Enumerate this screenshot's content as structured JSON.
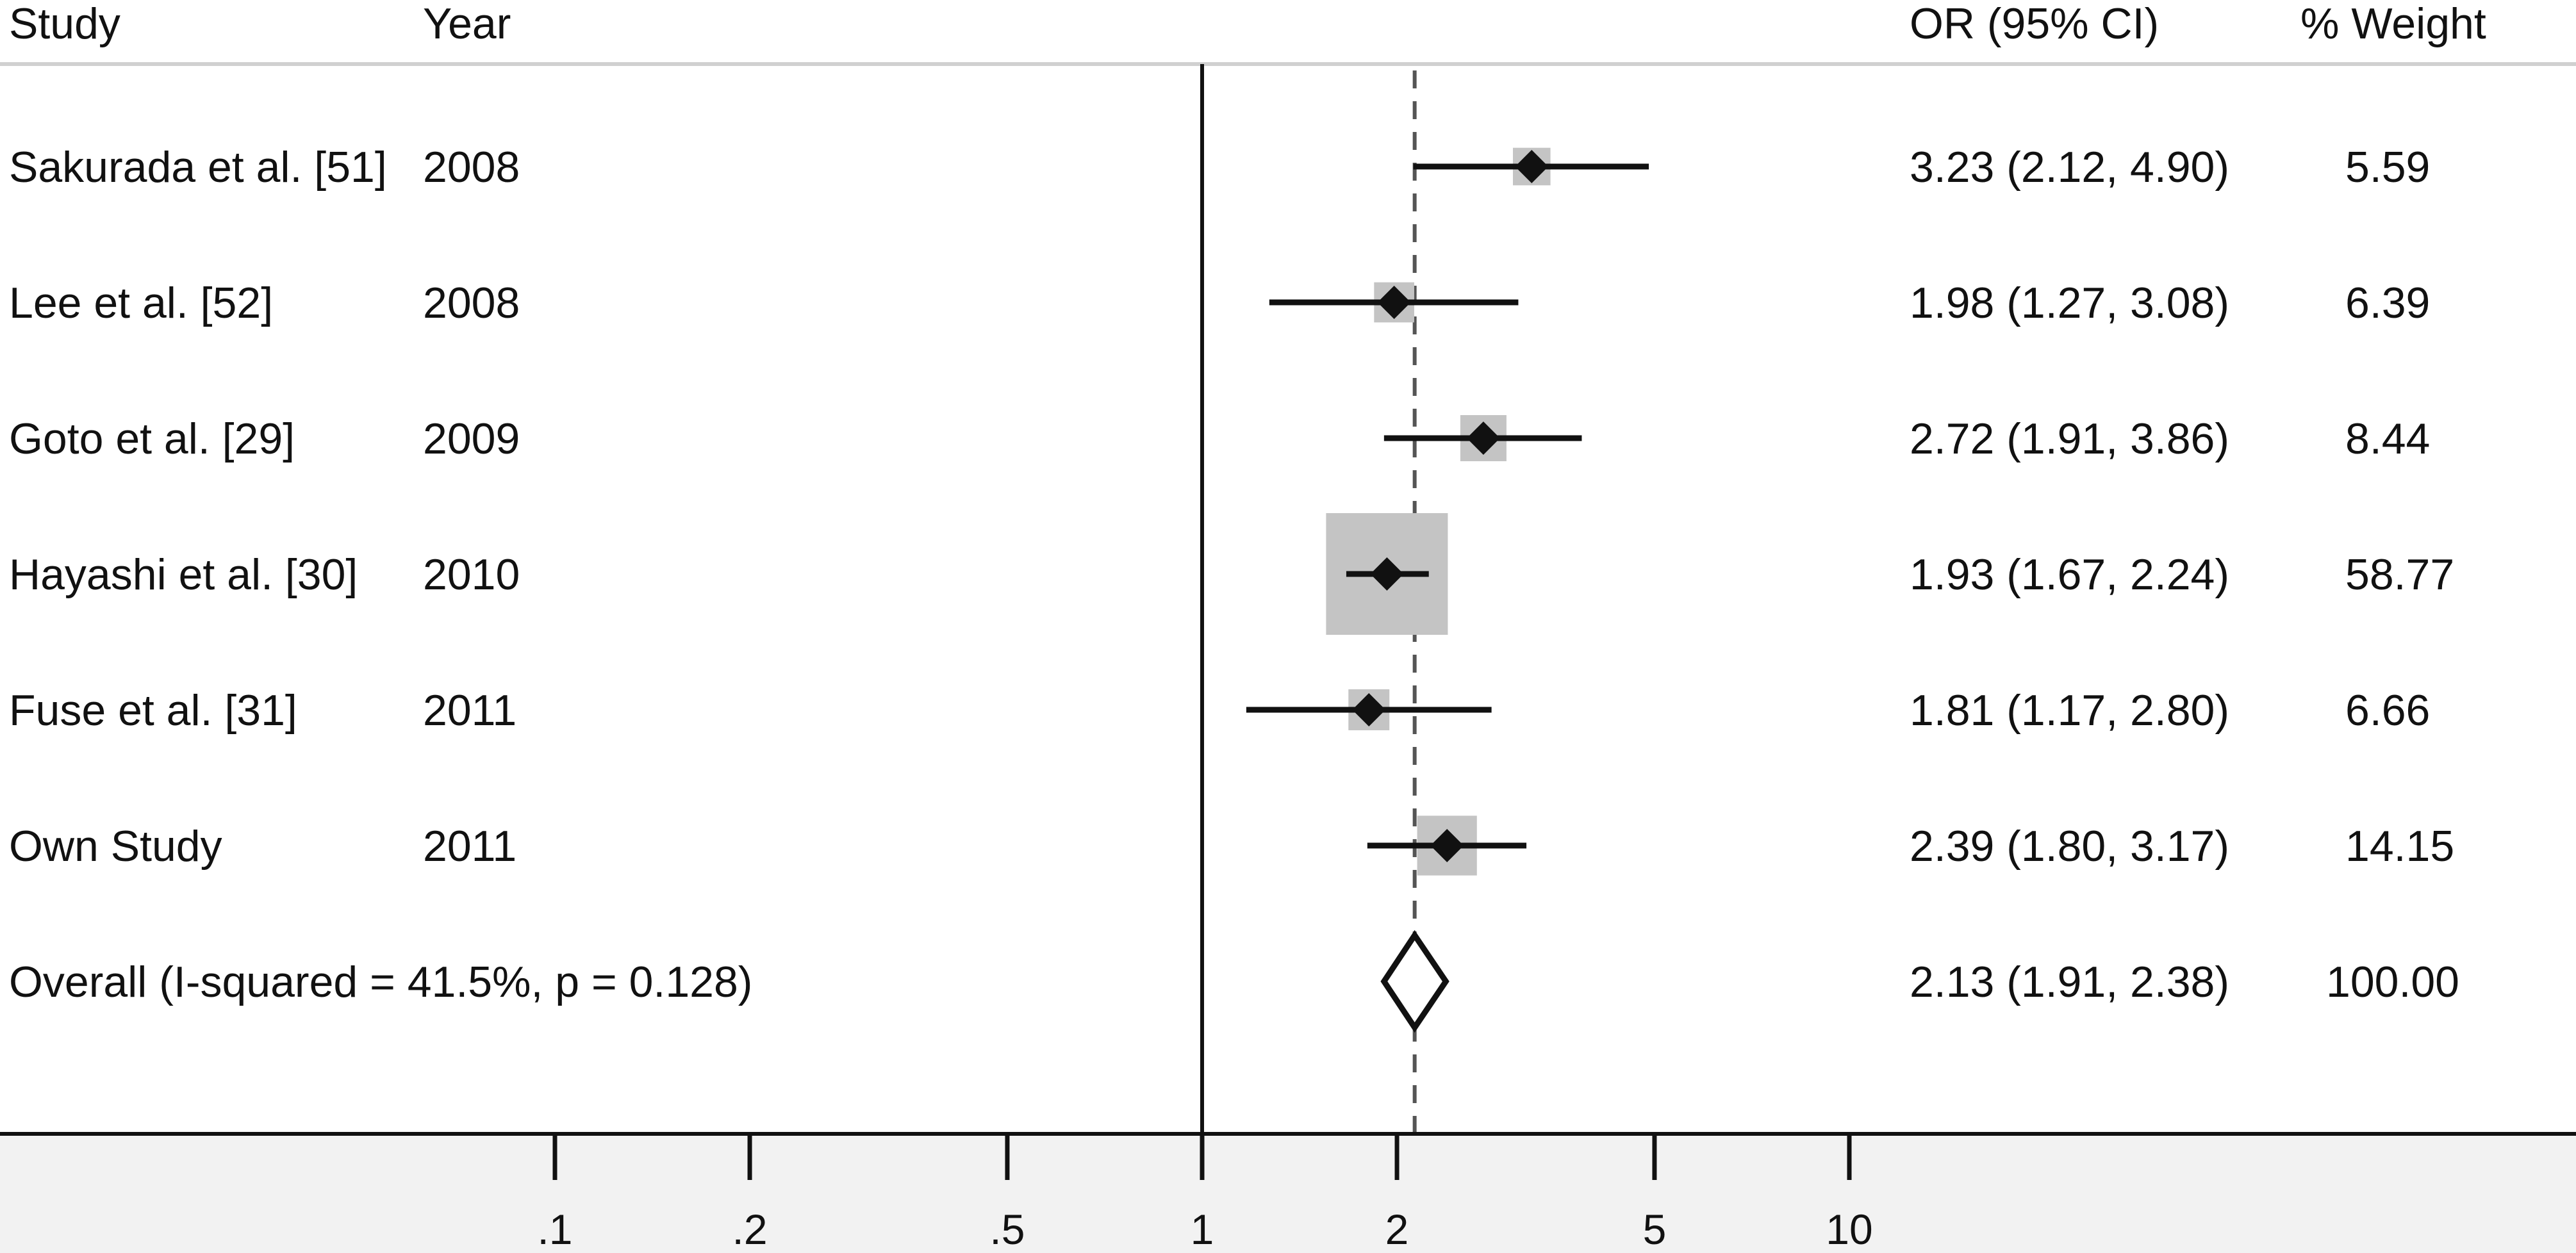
{
  "chart_data": {
    "type": "forest",
    "headers": {
      "study": "Study",
      "year": "Year",
      "or": "OR (95% CI)",
      "weight": "% Weight"
    },
    "studies": [
      {
        "name": "Sakurada et al. [51]",
        "year": "2008",
        "or": 3.23,
        "lo": 2.12,
        "hi": 4.9,
        "or_text": "3.23 (2.12, 4.90)",
        "weight": 5.59,
        "weight_text": "5.59"
      },
      {
        "name": "Lee et al. [52]",
        "year": "2008",
        "or": 1.98,
        "lo": 1.27,
        "hi": 3.08,
        "or_text": "1.98 (1.27, 3.08)",
        "weight": 6.39,
        "weight_text": "6.39"
      },
      {
        "name": "Goto et al. [29]",
        "year": "2009",
        "or": 2.72,
        "lo": 1.91,
        "hi": 3.86,
        "or_text": "2.72 (1.91, 3.86)",
        "weight": 8.44,
        "weight_text": "8.44"
      },
      {
        "name": "Hayashi et al. [30]",
        "year": "2010",
        "or": 1.93,
        "lo": 1.67,
        "hi": 2.24,
        "or_text": "1.93 (1.67, 2.24)",
        "weight": 58.77,
        "weight_text": "58.77"
      },
      {
        "name": "Fuse et al. [31]",
        "year": "2011",
        "or": 1.81,
        "lo": 1.17,
        "hi": 2.8,
        "or_text": "1.81 (1.17, 2.80)",
        "weight": 6.66,
        "weight_text": "6.66"
      },
      {
        "name": "Own Study",
        "year": "2011",
        "or": 2.39,
        "lo": 1.8,
        "hi": 3.17,
        "or_text": "2.39 (1.80, 3.17)",
        "weight": 14.15,
        "weight_text": "14.15"
      }
    ],
    "overall": {
      "label": "Overall  (I-squared = 41.5%, p = 0.128)",
      "or": 2.13,
      "lo": 1.91,
      "hi": 2.38,
      "or_text": "2.13 (1.91, 2.38)",
      "weight_text": "100.00"
    },
    "x_axis": {
      "scale": "log",
      "ticks": [
        0.1,
        0.2,
        0.5,
        1,
        2,
        5,
        10
      ],
      "tick_labels": [
        ".1",
        ".2",
        ".5",
        "1",
        "2",
        "5",
        "10"
      ],
      "reference": 1
    },
    "colors": {
      "text": "#111111",
      "weight_box": "#c4c4c4",
      "axis_panel": "#f2f2f2",
      "header_rule": "#d0d0d0"
    }
  }
}
